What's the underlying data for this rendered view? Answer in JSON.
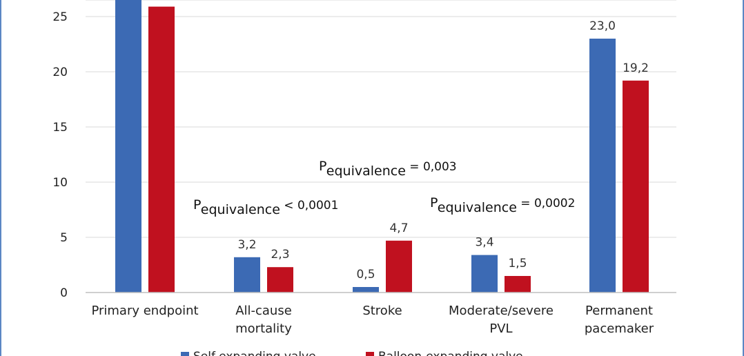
{
  "chart_data": {
    "type": "bar",
    "categories": [
      [
        "Primary endpoint"
      ],
      [
        "All-cause",
        "mortality"
      ],
      [
        "Stroke"
      ],
      [
        "Moderate/severe",
        "PVL"
      ],
      [
        "Permanent",
        "pacemaker"
      ]
    ],
    "series": [
      {
        "name": "Self-expanding valve",
        "color": "#3c6ab4",
        "values": [
          27.0,
          3.2,
          0.5,
          3.4,
          23.0
        ],
        "labels": [
          "",
          "3,2",
          "0,5",
          "3,4",
          "23,0"
        ]
      },
      {
        "name": "Balloon-expanding valve",
        "color": "#c0111f",
        "values": [
          25.9,
          2.3,
          4.7,
          1.5,
          19.2
        ],
        "labels": [
          "",
          "2,3",
          "4,7",
          "1,5",
          "19,2"
        ]
      }
    ],
    "yticks": [
      0,
      5,
      10,
      15,
      20,
      25
    ],
    "ylim": [
      0,
      27
    ],
    "grid": true,
    "legend_position": "bottom",
    "annotations": [
      {
        "main": "P",
        "sub": "equivalence",
        "rest": " < 0,0001",
        "category_index": 1
      },
      {
        "main": "P",
        "sub": "equivalence",
        "rest": " = 0,003",
        "category_index": 2
      },
      {
        "main": "P",
        "sub": "equivalence",
        "rest": " = 0,0002",
        "category_index": 3
      }
    ]
  }
}
